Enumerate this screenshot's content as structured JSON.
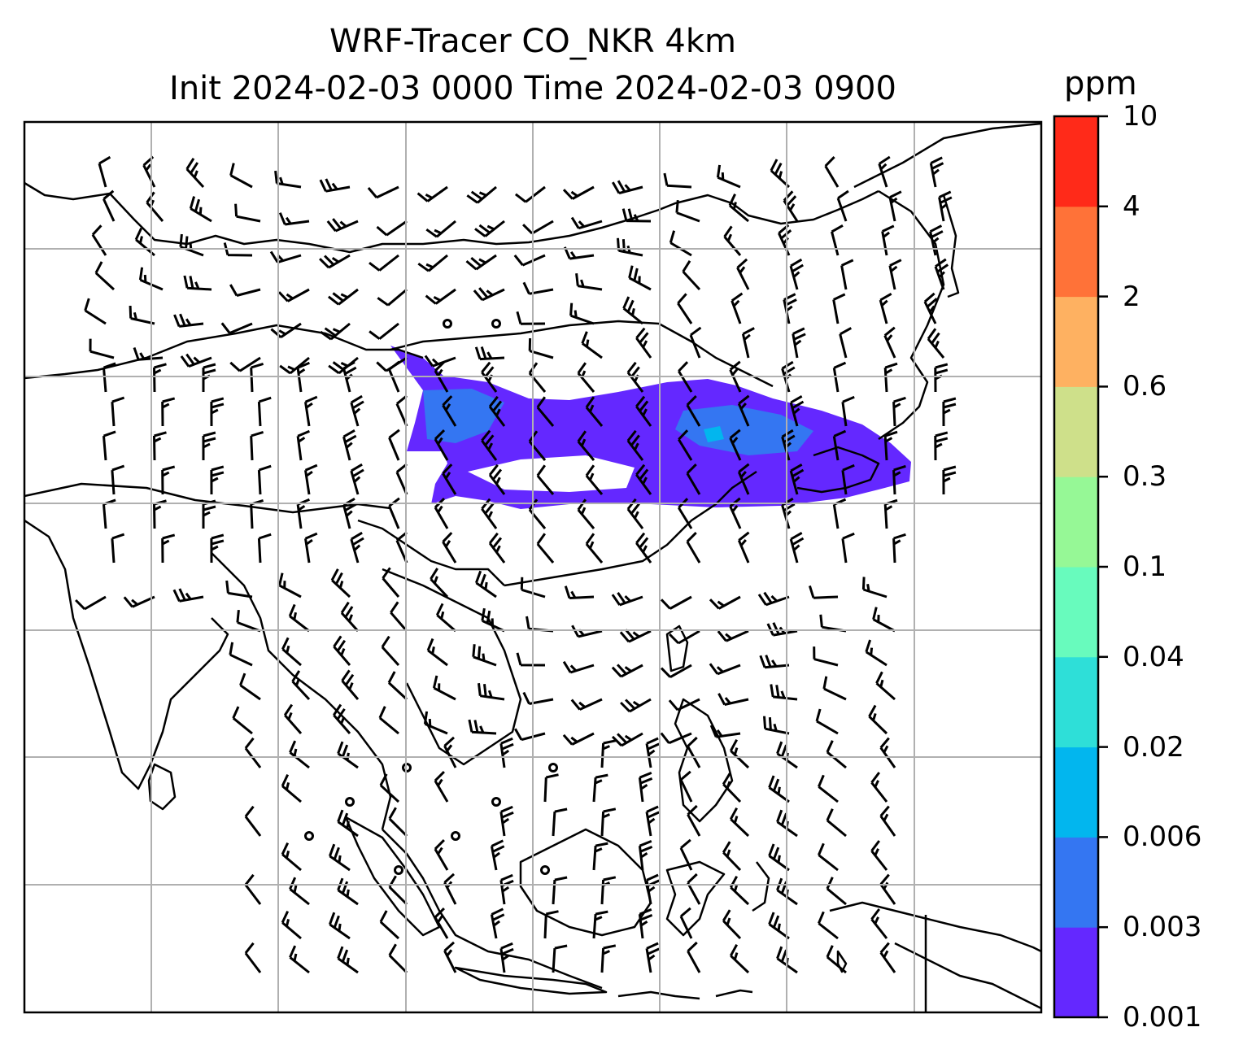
{
  "title": {
    "line1": "WRF-Tracer CO_NKR 4km",
    "line2": "Init 2024-02-03 0000 Time 2024-02-03 0900"
  },
  "colorbar": {
    "unit": "ppm",
    "levels": [
      "0.001",
      "0.003",
      "0.006",
      "0.02",
      "0.04",
      "0.1",
      "0.3",
      "0.6",
      "2",
      "4",
      "10"
    ],
    "colors": [
      "#6428ff",
      "#3476f2",
      "#02b6ee",
      "#2edfd8",
      "#68fbbd",
      "#96f896",
      "#cee08a",
      "#feb161",
      "#ff7238",
      "#ff2a19"
    ]
  },
  "map": {
    "background": "#ffffff",
    "gridline_color": "#b0b0b0",
    "coastline_color": "#000000",
    "plume_color": "#6428ff",
    "plume_core_color": "#3476f2",
    "plume_peak_color": "#02b6ee"
  }
}
